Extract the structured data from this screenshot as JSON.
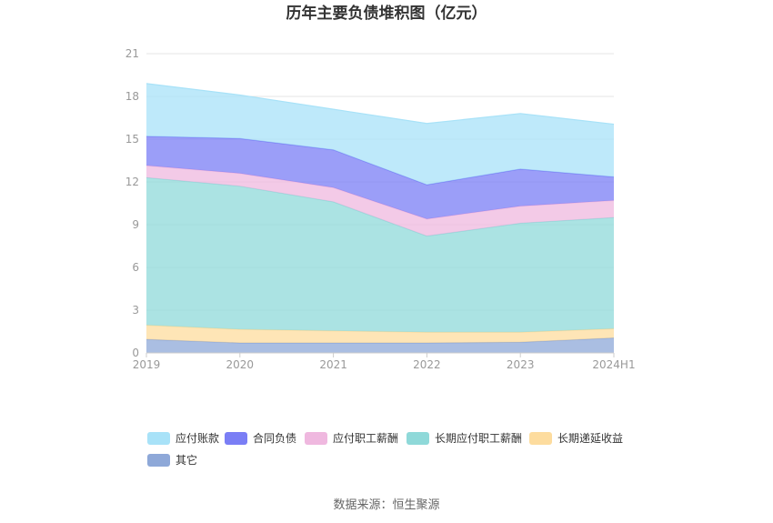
{
  "chart_data": {
    "type": "area",
    "stacked": true,
    "title": "历年主要负债堆积图（亿元）",
    "source": "数据来源：恒生聚源",
    "categories": [
      "2019",
      "2020",
      "2021",
      "2022",
      "2023",
      "2024H1"
    ],
    "ylim": [
      0,
      21
    ],
    "yticks": [
      "0",
      "3",
      "6",
      "9",
      "12",
      "15",
      "18",
      "21"
    ],
    "grid": true,
    "legend_position": "bottom",
    "series": [
      {
        "name": "其它",
        "color": "#8ea8d8",
        "values": [
          0.95,
          0.7,
          0.7,
          0.7,
          0.75,
          1.05
        ]
      },
      {
        "name": "长期递延收益",
        "color": "#fddc9e",
        "values": [
          1.0,
          0.95,
          0.85,
          0.75,
          0.7,
          0.65
        ]
      },
      {
        "name": "长期应付职工薪酬",
        "color": "#8fd9d9",
        "values": [
          10.35,
          10.05,
          9.05,
          6.75,
          7.65,
          7.8
        ]
      },
      {
        "name": "应付职工薪酬",
        "color": "#efb8df",
        "values": [
          0.85,
          0.9,
          1.0,
          1.2,
          1.2,
          1.2
        ]
      },
      {
        "name": "合同负债",
        "color": "#7a7ef5",
        "values": [
          2.05,
          2.45,
          2.65,
          2.4,
          2.6,
          1.65
        ]
      },
      {
        "name": "应付账款",
        "color": "#a8e2f8",
        "values": [
          3.7,
          3.05,
          2.85,
          4.3,
          3.9,
          3.7
        ]
      }
    ],
    "legend_order": [
      "应付账款",
      "合同负债",
      "应付职工薪酬",
      "长期应付职工薪酬",
      "长期递延收益",
      "其它"
    ]
  }
}
